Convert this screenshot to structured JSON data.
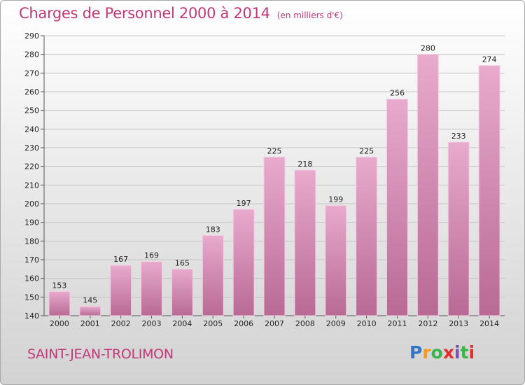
{
  "title": "Charges de Personnel 2000 à 2014",
  "subtitle": "(en milliers d'€)",
  "commune": "SAINT-JEAN-TROLIMON",
  "logo": {
    "text": "Proxiti",
    "letters": [
      "P",
      "r",
      "o",
      "x",
      "i",
      "t",
      "i"
    ],
    "colors": [
      "#2f76c8",
      "#f49a18",
      "#3ab54a",
      "#e52b2b",
      "#7c4fb0",
      "#3ab54a",
      "#e52b2b"
    ]
  },
  "colors": {
    "bar_light": "#e8aacd",
    "bar_dark": "#b86a94",
    "title": "#c23778"
  },
  "chart_data": {
    "type": "bar",
    "categories": [
      "2000",
      "2001",
      "2002",
      "2003",
      "2004",
      "2005",
      "2006",
      "2007",
      "2008",
      "2009",
      "2010",
      "2011",
      "2012",
      "2013",
      "2014"
    ],
    "values": [
      153,
      145,
      167,
      169,
      165,
      183,
      197,
      225,
      218,
      199,
      225,
      256,
      280,
      233,
      274
    ],
    "ylim": [
      140,
      290
    ],
    "yticks": [
      140,
      150,
      160,
      170,
      180,
      190,
      200,
      210,
      220,
      230,
      240,
      250,
      260,
      270,
      280,
      290
    ],
    "grid": true,
    "data_labels": true
  }
}
